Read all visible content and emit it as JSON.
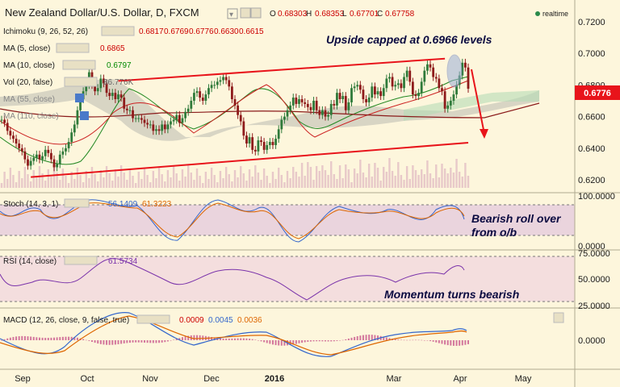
{
  "title": "New Zealand Dollar/U.S. Dollar, D, FXCM",
  "ohlc": {
    "o_label": "O",
    "o": "0.68303",
    "h_label": "H",
    "h": "0.68353",
    "l_label": "L",
    "l": "0.67701",
    "c_label": "C",
    "c": "0.67758"
  },
  "realtime": "realtime",
  "indicators": {
    "ichimoku": {
      "label": "Ichimoku (9, 26, 52, 26)",
      "values": [
        "0.6817",
        "0.6769",
        "0.6776",
        "0.6630",
        "0.6615"
      ],
      "colors": [
        "#cc0000",
        "#cc0000",
        "#cc0000",
        "#cc0000",
        "#cc0000"
      ]
    },
    "ma5": {
      "label": "MA (5, close)",
      "value": "0.6865",
      "color": "#cc0000"
    },
    "ma10": {
      "label": "MA (10, close)",
      "value": "0.6797",
      "color": "#008800"
    },
    "vol": {
      "label": "Vol (20, false)",
      "value": "86.776K"
    },
    "ma55": {
      "label": "MA (55, close)"
    },
    "ma110": {
      "label": "MA (110, close)"
    }
  },
  "price_label": "0.6776",
  "annotations": {
    "top": "Upside capped at 0.6966 levels",
    "stoch_line1": "Bearish roll over",
    "stoch_line2": "from o/b",
    "rsi": "Momentum turns bearish"
  },
  "sub_panels": {
    "stoch": {
      "label": "Stoch (14, 3, 1)",
      "v1": "56.1409",
      "v2": "61.3223",
      "c1": "#3366cc",
      "c2": "#dd6600",
      "ticks": [
        "100.0000",
        "0.0000"
      ]
    },
    "rsi": {
      "label": "RSI (14, close)",
      "v1": "61.5734",
      "c1": "#7a33aa",
      "ticks": [
        "75.0000",
        "50.0000",
        "25.0000"
      ]
    },
    "macd": {
      "label": "MACD (12, 26, close, 9, false, true)",
      "v1": "0.0009",
      "v2": "0.0045",
      "v3": "0.0036",
      "c1": "#cc0000",
      "c2": "#3366cc",
      "c3": "#dd6600",
      "ticks": [
        "0.0000"
      ]
    }
  },
  "chart_data": {
    "type": "line",
    "x_ticks": [
      "Sep",
      "Oct",
      "Nov",
      "Dec",
      "2016",
      "Mar",
      "Apr",
      "May"
    ],
    "y_ticks": [
      "0.7200",
      "0.7000",
      "0.6800",
      "0.6600",
      "0.6400",
      "0.6200"
    ],
    "ylim": [
      0.615,
      0.7265
    ],
    "series": [
      {
        "name": "close",
        "color": "#222222",
        "x": [
          0,
          1,
          2,
          3,
          4,
          5,
          6,
          7,
          8,
          9,
          10,
          11,
          12,
          13,
          14,
          15,
          16,
          17,
          18,
          19,
          20,
          21,
          22,
          23,
          24,
          25,
          26,
          27,
          28,
          29,
          30,
          31,
          32,
          33,
          34,
          35,
          36,
          37,
          38,
          39,
          40,
          41,
          42,
          43,
          44,
          45,
          46,
          47,
          48,
          49,
          50,
          51,
          52,
          53,
          54,
          55,
          56,
          57,
          58,
          59,
          60,
          61,
          62,
          63,
          64,
          65,
          66,
          67,
          68,
          69,
          70,
          71,
          72,
          73,
          74,
          75,
          76,
          77,
          78,
          79,
          80,
          81,
          82,
          83,
          84,
          85,
          86,
          87,
          88,
          89,
          90,
          91,
          92,
          93,
          94,
          95,
          96,
          97,
          98,
          99,
          100,
          101,
          102,
          103,
          104,
          105,
          106,
          107,
          108,
          109,
          110,
          111,
          112,
          113,
          114,
          115,
          116,
          117,
          118,
          119,
          120,
          121,
          122,
          123,
          124,
          125,
          126,
          127,
          128,
          129,
          130,
          131,
          132,
          133,
          134,
          135,
          136,
          137,
          138,
          139,
          140,
          141,
          142,
          143,
          144,
          145,
          146,
          147,
          148,
          149,
          150,
          151,
          152,
          153,
          154,
          155,
          156,
          157,
          158,
          159,
          160
        ],
        "y": [
          0.658,
          0.656,
          0.651,
          0.648,
          0.646,
          0.643,
          0.64,
          0.638,
          0.633,
          0.629,
          0.632,
          0.634,
          0.636,
          0.633,
          0.635,
          0.639,
          0.637,
          0.633,
          0.628,
          0.63,
          0.636,
          0.638,
          0.64,
          0.644,
          0.65,
          0.655,
          0.664,
          0.671,
          0.676,
          0.68,
          0.688,
          0.68,
          0.676,
          0.678,
          0.684,
          0.681,
          0.675,
          0.673,
          0.675,
          0.671,
          0.674,
          0.672,
          0.665,
          0.664,
          0.664,
          0.659,
          0.659,
          0.659,
          0.658,
          0.656,
          0.655,
          0.655,
          0.651,
          0.652,
          0.651,
          0.655,
          0.652,
          0.655,
          0.657,
          0.658,
          0.661,
          0.656,
          0.659,
          0.663,
          0.665,
          0.67,
          0.675,
          0.676,
          0.672,
          0.67,
          0.674,
          0.678,
          0.68,
          0.68,
          0.682,
          0.683,
          0.685,
          0.683,
          0.679,
          0.671,
          0.667,
          0.661,
          0.657,
          0.648,
          0.643,
          0.647,
          0.639,
          0.638,
          0.645,
          0.644,
          0.639,
          0.642,
          0.644,
          0.642,
          0.646,
          0.652,
          0.658,
          0.66,
          0.664,
          0.667,
          0.672,
          0.668,
          0.671,
          0.669,
          0.668,
          0.666,
          0.664,
          0.67,
          0.664,
          0.661,
          0.664,
          0.66,
          0.661,
          0.668,
          0.667,
          0.675,
          0.671,
          0.673,
          0.664,
          0.669,
          0.678,
          0.679,
          0.68,
          0.677,
          0.671,
          0.669,
          0.672,
          0.679,
          0.674,
          0.676,
          0.673,
          0.678,
          0.684,
          0.685,
          0.679,
          0.68,
          0.681,
          0.678,
          0.685,
          0.689,
          0.682,
          0.674,
          0.673,
          0.675,
          0.682,
          0.689,
          0.693,
          0.691,
          0.685,
          0.684,
          0.678,
          0.676,
          0.665,
          0.667,
          0.67,
          0.674,
          0.68,
          0.686,
          0.694,
          0.691,
          0.6776
        ]
      },
      {
        "name": "upper_trend",
        "color": "#e8141b",
        "x": [
          40,
          152
        ],
        "y": [
          0.6825,
          0.6966
        ]
      },
      {
        "name": "lower_trend",
        "color": "#e8141b",
        "x": [
          10,
          160
        ],
        "y": [
          0.6218,
          0.6435
        ]
      }
    ],
    "grid": true
  }
}
